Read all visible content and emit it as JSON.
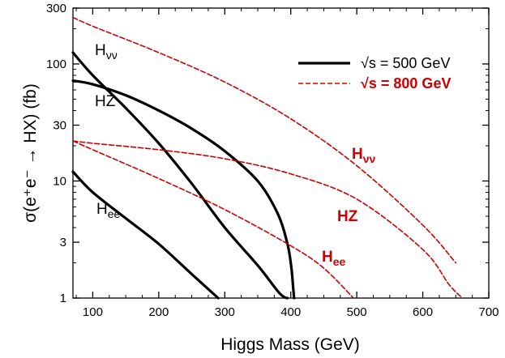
{
  "chart_data": {
    "type": "line",
    "xlabel": "Higgs Mass (GeV)",
    "ylabel": "σ(e⁺e⁻ → HX)  (fb)",
    "xlim": [
      70,
      700
    ],
    "ylim": [
      1,
      300
    ],
    "yscale": "log",
    "xticks": [
      100,
      200,
      300,
      400,
      500,
      600,
      700
    ],
    "yticks": [
      1,
      3,
      10,
      30,
      100,
      300
    ],
    "grid": false,
    "legend": {
      "position": "top-right",
      "entries": [
        {
          "label": "√s = 500 GeV",
          "color": "#000000",
          "style": "solid"
        },
        {
          "label": "√s = 800 GeV",
          "color": "#cc0000",
          "style": "dashed"
        }
      ]
    },
    "series": [
      {
        "group": "500",
        "label_main": "H",
        "label_sub": "νν",
        "color": "#000000",
        "style": "solid",
        "x": [
          70,
          100,
          150,
          200,
          250,
          300,
          350,
          380,
          390,
          395
        ],
        "y": [
          125,
          80,
          42,
          21,
          9.5,
          4.0,
          1.9,
          1.15,
          1.02,
          1.0
        ]
      },
      {
        "group": "500",
        "label_main": "HZ",
        "label_sub": "",
        "color": "#000000",
        "style": "solid",
        "x": [
          70,
          100,
          150,
          200,
          250,
          300,
          350,
          380,
          395,
          401,
          403.5,
          405
        ],
        "y": [
          72,
          67,
          54,
          40,
          28,
          18,
          10,
          5.3,
          2.9,
          1.8,
          1.25,
          1.0
        ]
      },
      {
        "group": "500",
        "label_main": "H",
        "label_sub": "ee",
        "color": "#000000",
        "style": "solid",
        "x": [
          70,
          100,
          150,
          200,
          250,
          290
        ],
        "y": [
          12,
          8.0,
          4.8,
          2.9,
          1.6,
          1.0
        ]
      },
      {
        "group": "800",
        "label_main": "H",
        "label_sub": "νν",
        "color": "#cc0000",
        "style": "dashed",
        "x": [
          70,
          100,
          200,
          300,
          400,
          500,
          600,
          650
        ],
        "y": [
          250,
          210,
          125,
          70,
          34,
          13.5,
          4.2,
          2.0
        ]
      },
      {
        "group": "800",
        "label_main": "HZ",
        "label_sub": "",
        "color": "#cc0000",
        "style": "dashed",
        "x": [
          70,
          100,
          200,
          300,
          400,
          500,
          600,
          640,
          660
        ],
        "y": [
          22,
          21,
          18.5,
          15.5,
          11.5,
          7.0,
          2.6,
          1.3,
          1.0
        ]
      },
      {
        "group": "800",
        "label_main": "H",
        "label_sub": "ee",
        "color": "#cc0000",
        "style": "dashed",
        "x": [
          70,
          100,
          200,
          300,
          400,
          450,
          495
        ],
        "y": [
          22,
          18.5,
          10.5,
          5.7,
          2.8,
          1.8,
          1.0
        ]
      }
    ]
  }
}
